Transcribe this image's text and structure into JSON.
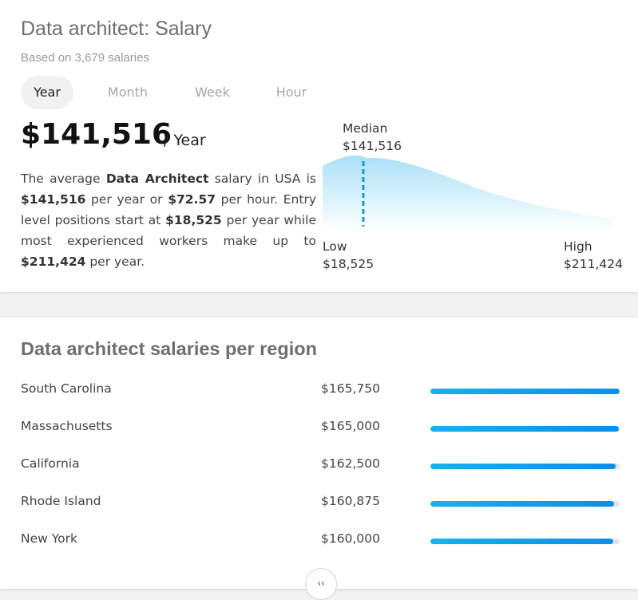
{
  "salary_card": {
    "title": "Data architect: Salary",
    "subtitle": "Based on 3,679 salaries",
    "tabs": [
      {
        "label": "Year",
        "active": true
      },
      {
        "label": "Month",
        "active": false
      },
      {
        "label": "Week",
        "active": false
      },
      {
        "label": "Hour",
        "active": false
      }
    ],
    "amount": "$141,516",
    "per_unit": "/ Year",
    "description": {
      "t1": "The average ",
      "job": "Data Architect",
      "t2": " salary in USA is ",
      "yearly": "$141,516",
      "t3": " per year or ",
      "hourly": "$72.57",
      "t4": " per hour. Entry level positions start at ",
      "entry": "$18,525",
      "t5": " per year while most experienced workers make up to ",
      "top": "$211,424",
      "t6": " per year."
    },
    "distribution": {
      "median_label": "Median",
      "median_value": "$141,516",
      "low_label": "Low",
      "low_value": "$18,525",
      "high_label": "High",
      "high_value": "$211,424",
      "fill_color": "#a9e0f8",
      "marker_color": "#1a9ad6"
    }
  },
  "region_card": {
    "title": "Data architect salaries per region",
    "rows": [
      {
        "name": "South Carolina",
        "salary": "$165,750",
        "fill": 1.0
      },
      {
        "name": "Massachusetts",
        "salary": "$165,000",
        "fill": 0.995
      },
      {
        "name": "California",
        "salary": "$162,500",
        "fill": 0.98
      },
      {
        "name": "Rhode Island",
        "salary": "$160,875",
        "fill": 0.971
      },
      {
        "name": "New York",
        "salary": "$160,000",
        "fill": 0.965
      }
    ],
    "more_button_icon": "chevrons-down-icon",
    "more_button_glyph": "‹‹"
  }
}
